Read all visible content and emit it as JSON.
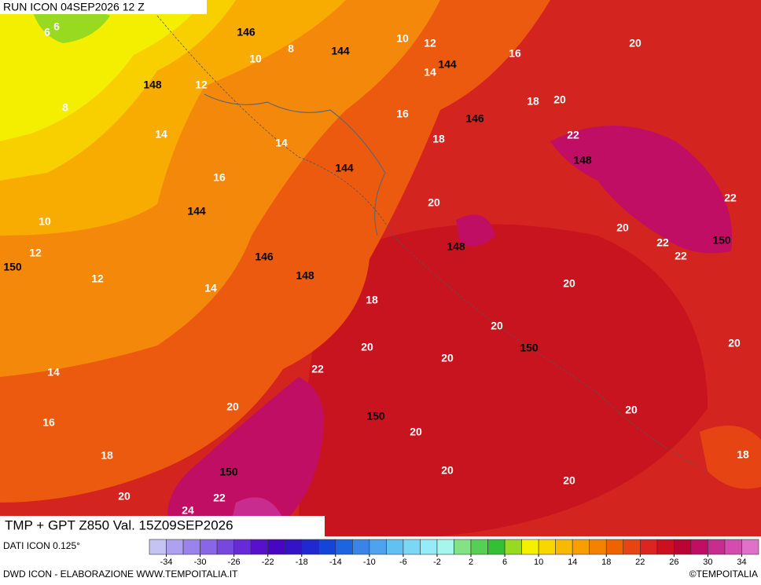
{
  "header": {
    "run": "RUN ICON 04SEP2026 12 Z"
  },
  "map": {
    "product": "TMP + GPT Z850 Val. 15Z09SEP2026",
    "contour_labels": {
      "temperature": [
        6,
        6,
        10,
        12,
        8,
        10,
        16,
        20,
        14,
        12,
        18,
        20,
        8,
        16,
        14,
        18,
        22,
        14,
        16,
        20,
        22,
        10,
        20,
        22,
        12,
        22,
        12,
        14,
        20,
        18,
        20,
        20,
        20,
        20,
        22,
        14,
        20,
        20,
        16,
        20,
        18,
        18,
        20,
        20,
        20,
        22,
        24
      ],
      "geopotential": [
        146,
        144,
        144,
        148,
        146,
        144,
        148,
        144,
        150,
        146,
        148,
        148,
        150,
        150,
        150,
        150
      ]
    }
  },
  "footer": {
    "source": "DATI ICON 0.125°",
    "credit": "DWD ICON - ELABORAZIONE WWW.TEMPOITALIA.IT",
    "copyright": "©TEMPOITALIA"
  },
  "colorbar": {
    "range": [
      -36,
      36
    ],
    "ticks": [
      -34,
      -30,
      -26,
      -22,
      -18,
      -14,
      -10,
      -6,
      -2,
      2,
      6,
      10,
      14,
      18,
      22,
      26,
      30,
      34
    ],
    "colors": [
      "#c4c4f4",
      "#aea2f0",
      "#9a84ec",
      "#8866e6",
      "#7648de",
      "#662ad6",
      "#5810cc",
      "#4806c4",
      "#3412c8",
      "#2228d0",
      "#1444d8",
      "#1c64e0",
      "#3a84e8",
      "#4ea2ee",
      "#62c0f2",
      "#7ad8f4",
      "#94ecf8",
      "#a6f6ee",
      "#84e284",
      "#56d054",
      "#34c034",
      "#98da20",
      "#f4f000",
      "#f8d600",
      "#f8ba00",
      "#f89e00",
      "#f48200",
      "#ee6200",
      "#e64412",
      "#dc2420",
      "#cc1020",
      "#bc0434",
      "#c00e64",
      "#c82c8e",
      "#d44cae",
      "#e070c8"
    ]
  }
}
